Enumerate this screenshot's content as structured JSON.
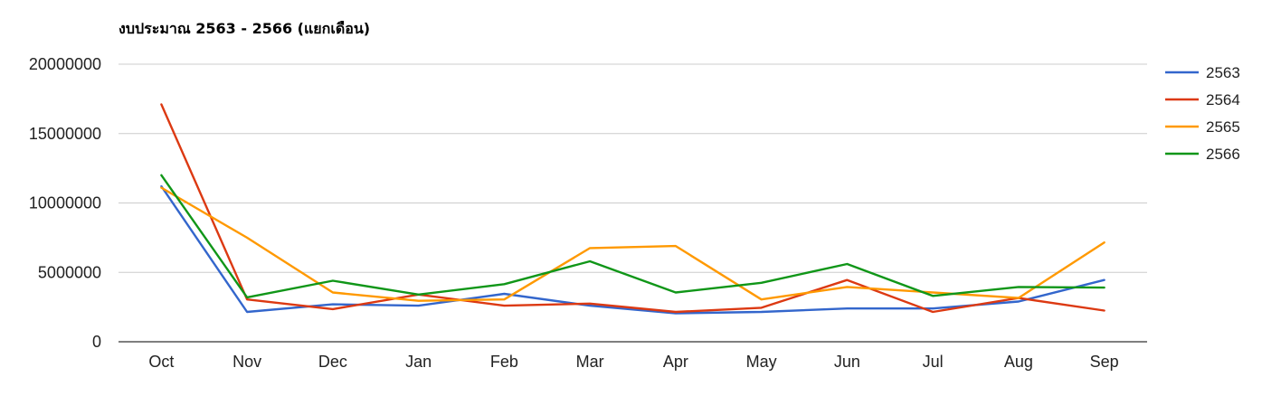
{
  "chart_data": {
    "type": "line",
    "title": "งบประมาณ 2563 - 2566 (แยกเดือน)",
    "xlabel": "",
    "ylabel": "",
    "categories": [
      "Oct",
      "Nov",
      "Dec",
      "Jan",
      "Feb",
      "Mar",
      "Apr",
      "May",
      "Jun",
      "Jul",
      "Aug",
      "Sep"
    ],
    "ylim": [
      0,
      20000000
    ],
    "yticks": [
      "0",
      "5000000",
      "10000000",
      "15000000",
      "20000000"
    ],
    "ytick_values": [
      0,
      5000000,
      10000000,
      15000000,
      20000000
    ],
    "grid": true,
    "legend_position": "right",
    "series": [
      {
        "name": "2563",
        "color": "#3366cc",
        "values": [
          11200000,
          2150000,
          2700000,
          2600000,
          3450000,
          2600000,
          2050000,
          2150000,
          2400000,
          2400000,
          2900000,
          4450000
        ]
      },
      {
        "name": "2564",
        "color": "#dc3912",
        "values": [
          17100000,
          3050000,
          2350000,
          3400000,
          2600000,
          2750000,
          2150000,
          2450000,
          4450000,
          2150000,
          3150000,
          2250000
        ]
      },
      {
        "name": "2565",
        "color": "#ff9900",
        "values": [
          11100000,
          7500000,
          3550000,
          2950000,
          3050000,
          6750000,
          6900000,
          3050000,
          3950000,
          3550000,
          3150000,
          7150000
        ]
      },
      {
        "name": "2566",
        "color": "#109618",
        "values": [
          12000000,
          3200000,
          4400000,
          3400000,
          4150000,
          5800000,
          3550000,
          4250000,
          5600000,
          3300000,
          3950000,
          3900000
        ]
      }
    ]
  }
}
